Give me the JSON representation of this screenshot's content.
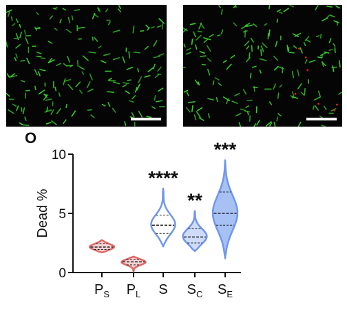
{
  "panel_letter": "O",
  "micrographs": [
    {
      "name": "left",
      "bacteria_color": "#37d52a"
    },
    {
      "name": "right",
      "bacteria_color": "#37d52a",
      "dead_color": "#e0241d"
    }
  ],
  "chart_data": {
    "type": "violin",
    "ylabel": "Dead %",
    "xlabel": "",
    "ylim": [
      0,
      10
    ],
    "yticks": [
      0,
      5,
      10
    ],
    "grid": false,
    "categories": [
      {
        "label": "P",
        "sub": "S"
      },
      {
        "label": "P",
        "sub": "L"
      },
      {
        "label": "S",
        "sub": ""
      },
      {
        "label": "S",
        "sub": "C"
      },
      {
        "label": "S",
        "sub": "E"
      }
    ],
    "series": [
      {
        "min": 1.7,
        "q1": 1.95,
        "median": 2.15,
        "q3": 2.45,
        "max": 2.75,
        "color": "#e06666",
        "fill": "#f9d4d4",
        "significance": ""
      },
      {
        "min": 0.1,
        "q1": 0.65,
        "median": 0.9,
        "q3": 1.1,
        "max": 1.35,
        "color": "#e06666",
        "fill": "#f9d4d4",
        "significance": ""
      },
      {
        "min": 2.2,
        "q1": 3.3,
        "median": 4.0,
        "q3": 4.85,
        "max": 7.1,
        "color": "#6f96ec",
        "fill": "#ffffff",
        "significance": "****"
      },
      {
        "min": 1.8,
        "q1": 2.5,
        "median": 3.0,
        "q3": 3.7,
        "max": 5.2,
        "color": "#6f96ec",
        "fill": "#cfdcf9",
        "significance": "**"
      },
      {
        "min": 1.2,
        "q1": 4.0,
        "median": 5.0,
        "q3": 6.8,
        "max": 9.5,
        "color": "#6f96ec",
        "fill": "#a7c1f5",
        "significance": "***"
      }
    ]
  }
}
